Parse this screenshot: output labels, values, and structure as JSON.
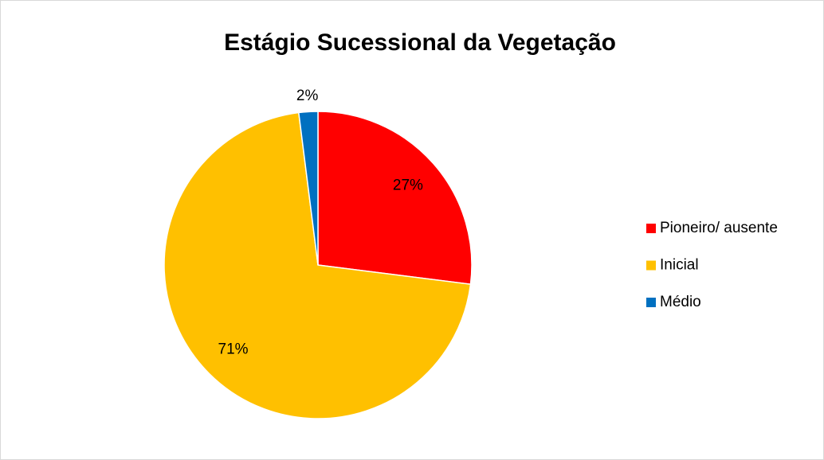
{
  "chart_data": {
    "type": "pie",
    "title": "Estágio Sucessional da Vegetação",
    "categories": [
      "Pioneiro/ ausente",
      "Inicial",
      "Médio"
    ],
    "values": [
      27,
      71,
      2
    ],
    "value_labels": [
      "27%",
      "71%",
      "2%"
    ],
    "colors": [
      "#ff0000",
      "#ffc000",
      "#0070c0"
    ],
    "legend": "right"
  }
}
